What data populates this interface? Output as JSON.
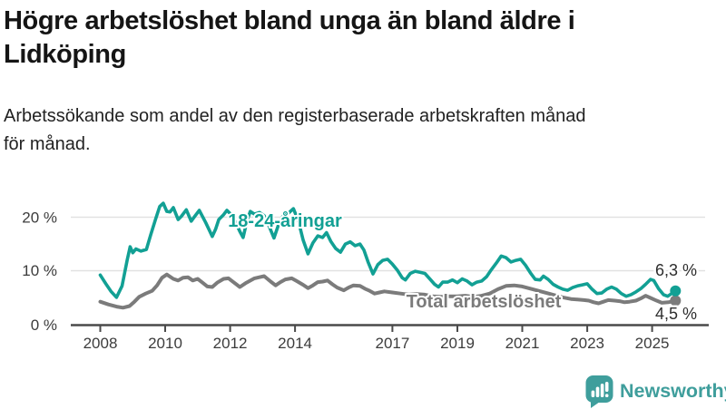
{
  "header": {
    "title": "Högre arbetslöshet bland unga än bland äldre i\nLidköping",
    "subtitle": "Arbetssökande som andel av den registerbaserade arbetskraften månad\nför månad."
  },
  "chart_data": {
    "type": "line",
    "x_unit": "year (decimal years, monthly data)",
    "xlim": [
      2008,
      2025.72
    ],
    "ylim": [
      0,
      24
    ],
    "grid": "horizontal",
    "value_suffix": " %",
    "x_ticks": [
      2008,
      2010,
      2012,
      2014,
      2017,
      2019,
      2021,
      2023,
      2025
    ],
    "y_ticks": [
      {
        "value": 0,
        "label": "0 %"
      },
      {
        "value": 10,
        "label": "10 %"
      },
      {
        "value": 20,
        "label": "20 %"
      }
    ],
    "series": [
      {
        "name": "18-24-åringar",
        "color": "#12a094",
        "end_label": "6,3 %",
        "end_value": 6.3,
        "points": [
          [
            2008.0,
            9.2
          ],
          [
            2008.17,
            7.6
          ],
          [
            2008.33,
            6.2
          ],
          [
            2008.5,
            5.1
          ],
          [
            2008.67,
            7.2
          ],
          [
            2008.83,
            12.0
          ],
          [
            2008.92,
            14.4
          ],
          [
            2009.0,
            13.3
          ],
          [
            2009.1,
            14.0
          ],
          [
            2009.25,
            13.6
          ],
          [
            2009.42,
            13.9
          ],
          [
            2009.55,
            16.5
          ],
          [
            2009.7,
            19.4
          ],
          [
            2009.83,
            21.8
          ],
          [
            2009.94,
            22.4
          ],
          [
            2010.05,
            20.9
          ],
          [
            2010.15,
            20.8
          ],
          [
            2010.25,
            21.6
          ],
          [
            2010.4,
            19.4
          ],
          [
            2010.5,
            20.0
          ],
          [
            2010.65,
            21.2
          ],
          [
            2010.8,
            19.1
          ],
          [
            2010.9,
            19.9
          ],
          [
            2011.05,
            21.1
          ],
          [
            2011.25,
            18.8
          ],
          [
            2011.45,
            16.3
          ],
          [
            2011.55,
            17.6
          ],
          [
            2011.65,
            19.4
          ],
          [
            2011.8,
            20.3
          ],
          [
            2011.9,
            21.1
          ],
          [
            2012.0,
            20.5
          ],
          [
            2012.15,
            19.2
          ],
          [
            2012.3,
            17.2
          ],
          [
            2012.4,
            16.1
          ],
          [
            2012.52,
            19.2
          ],
          [
            2012.62,
            20.9
          ],
          [
            2012.75,
            20.4
          ],
          [
            2012.9,
            20.7
          ],
          [
            2013.05,
            20.1
          ],
          [
            2013.2,
            18.2
          ],
          [
            2013.35,
            16.0
          ],
          [
            2013.5,
            18.6
          ],
          [
            2013.65,
            20.3
          ],
          [
            2013.8,
            20.6
          ],
          [
            2013.95,
            21.4
          ],
          [
            2014.1,
            19.2
          ],
          [
            2014.25,
            15.6
          ],
          [
            2014.4,
            13.1
          ],
          [
            2014.55,
            15.1
          ],
          [
            2014.7,
            16.4
          ],
          [
            2014.85,
            16.1
          ],
          [
            2014.97,
            17.0
          ],
          [
            2015.1,
            15.4
          ],
          [
            2015.25,
            14.1
          ],
          [
            2015.4,
            13.4
          ],
          [
            2015.55,
            14.9
          ],
          [
            2015.7,
            15.3
          ],
          [
            2015.85,
            14.6
          ],
          [
            2016.0,
            14.9
          ],
          [
            2016.12,
            13.8
          ],
          [
            2016.25,
            11.6
          ],
          [
            2016.4,
            9.4
          ],
          [
            2016.55,
            11.1
          ],
          [
            2016.7,
            11.9
          ],
          [
            2016.85,
            12.1
          ],
          [
            2017.0,
            11.2
          ],
          [
            2017.15,
            10.1
          ],
          [
            2017.3,
            8.7
          ],
          [
            2017.4,
            8.3
          ],
          [
            2017.55,
            9.5
          ],
          [
            2017.7,
            9.9
          ],
          [
            2017.85,
            9.7
          ],
          [
            2018.0,
            9.5
          ],
          [
            2018.15,
            8.5
          ],
          [
            2018.3,
            7.5
          ],
          [
            2018.42,
            7.0
          ],
          [
            2018.55,
            7.9
          ],
          [
            2018.7,
            7.9
          ],
          [
            2018.85,
            8.3
          ],
          [
            2019.0,
            7.8
          ],
          [
            2019.15,
            8.5
          ],
          [
            2019.3,
            8.1
          ],
          [
            2019.45,
            7.4
          ],
          [
            2019.6,
            7.9
          ],
          [
            2019.75,
            8.1
          ],
          [
            2019.9,
            8.9
          ],
          [
            2020.05,
            10.2
          ],
          [
            2020.2,
            11.4
          ],
          [
            2020.35,
            12.7
          ],
          [
            2020.5,
            12.4
          ],
          [
            2020.65,
            11.6
          ],
          [
            2020.8,
            11.9
          ],
          [
            2020.95,
            12.1
          ],
          [
            2021.1,
            11.0
          ],
          [
            2021.25,
            9.6
          ],
          [
            2021.4,
            8.4
          ],
          [
            2021.55,
            8.3
          ],
          [
            2021.65,
            9.0
          ],
          [
            2021.8,
            8.4
          ],
          [
            2021.95,
            7.5
          ],
          [
            2022.1,
            7.0
          ],
          [
            2022.25,
            6.6
          ],
          [
            2022.4,
            6.4
          ],
          [
            2022.55,
            6.9
          ],
          [
            2022.7,
            7.2
          ],
          [
            2022.85,
            7.4
          ],
          [
            2023.0,
            7.6
          ],
          [
            2023.15,
            6.6
          ],
          [
            2023.3,
            5.8
          ],
          [
            2023.45,
            5.9
          ],
          [
            2023.6,
            6.6
          ],
          [
            2023.75,
            7.0
          ],
          [
            2023.9,
            6.6
          ],
          [
            2024.05,
            5.8
          ],
          [
            2024.2,
            5.3
          ],
          [
            2024.35,
            5.6
          ],
          [
            2024.5,
            6.1
          ],
          [
            2024.65,
            6.7
          ],
          [
            2024.8,
            7.5
          ],
          [
            2024.95,
            8.4
          ],
          [
            2025.05,
            8.2
          ],
          [
            2025.2,
            6.7
          ],
          [
            2025.35,
            5.6
          ],
          [
            2025.48,
            5.3
          ],
          [
            2025.6,
            5.8
          ],
          [
            2025.72,
            6.3
          ]
        ]
      },
      {
        "name": "Total arbetslöshet",
        "color": "#7b7b7b",
        "end_label": "4,5 %",
        "end_value": 4.5,
        "points": [
          [
            2008.0,
            4.3
          ],
          [
            2008.25,
            3.8
          ],
          [
            2008.5,
            3.4
          ],
          [
            2008.7,
            3.2
          ],
          [
            2008.9,
            3.5
          ],
          [
            2009.05,
            4.3
          ],
          [
            2009.2,
            5.2
          ],
          [
            2009.4,
            5.8
          ],
          [
            2009.6,
            6.3
          ],
          [
            2009.75,
            7.3
          ],
          [
            2009.9,
            8.7
          ],
          [
            2010.05,
            9.3
          ],
          [
            2010.25,
            8.5
          ],
          [
            2010.4,
            8.2
          ],
          [
            2010.55,
            8.7
          ],
          [
            2010.7,
            8.8
          ],
          [
            2010.85,
            8.2
          ],
          [
            2011.0,
            8.5
          ],
          [
            2011.15,
            7.8
          ],
          [
            2011.3,
            7.1
          ],
          [
            2011.45,
            7.0
          ],
          [
            2011.6,
            7.8
          ],
          [
            2011.8,
            8.5
          ],
          [
            2011.95,
            8.6
          ],
          [
            2012.1,
            7.9
          ],
          [
            2012.3,
            7.0
          ],
          [
            2012.5,
            7.8
          ],
          [
            2012.75,
            8.6
          ],
          [
            2012.9,
            8.8
          ],
          [
            2013.05,
            9.0
          ],
          [
            2013.25,
            8.0
          ],
          [
            2013.4,
            7.3
          ],
          [
            2013.55,
            7.9
          ],
          [
            2013.7,
            8.4
          ],
          [
            2013.9,
            8.6
          ],
          [
            2014.05,
            8.1
          ],
          [
            2014.25,
            7.4
          ],
          [
            2014.4,
            6.8
          ],
          [
            2014.55,
            7.3
          ],
          [
            2014.7,
            7.9
          ],
          [
            2014.85,
            8.0
          ],
          [
            2015.0,
            8.2
          ],
          [
            2015.15,
            7.5
          ],
          [
            2015.3,
            6.9
          ],
          [
            2015.5,
            6.4
          ],
          [
            2015.65,
            6.9
          ],
          [
            2015.8,
            7.3
          ],
          [
            2016.0,
            7.2
          ],
          [
            2016.15,
            6.7
          ],
          [
            2016.3,
            6.3
          ],
          [
            2016.45,
            5.8
          ],
          [
            2016.6,
            6.0
          ],
          [
            2016.75,
            6.2
          ],
          [
            2017.0,
            6.0
          ],
          [
            2017.25,
            5.8
          ],
          [
            2017.5,
            5.6
          ],
          [
            2017.75,
            5.7
          ],
          [
            2018.0,
            5.6
          ],
          [
            2018.25,
            5.3
          ],
          [
            2018.5,
            5.2
          ],
          [
            2018.75,
            5.3
          ],
          [
            2019.0,
            5.3
          ],
          [
            2019.25,
            5.4
          ],
          [
            2019.5,
            5.2
          ],
          [
            2019.75,
            5.4
          ],
          [
            2020.0,
            5.8
          ],
          [
            2020.25,
            6.6
          ],
          [
            2020.5,
            7.2
          ],
          [
            2020.75,
            7.3
          ],
          [
            2021.0,
            7.1
          ],
          [
            2021.25,
            6.7
          ],
          [
            2021.5,
            6.3
          ],
          [
            2021.75,
            5.9
          ],
          [
            2022.0,
            5.5
          ],
          [
            2022.25,
            5.1
          ],
          [
            2022.5,
            4.8
          ],
          [
            2022.7,
            4.7
          ],
          [
            2022.9,
            4.6
          ],
          [
            2023.05,
            4.5
          ],
          [
            2023.2,
            4.2
          ],
          [
            2023.35,
            4.0
          ],
          [
            2023.5,
            4.3
          ],
          [
            2023.65,
            4.6
          ],
          [
            2023.85,
            4.5
          ],
          [
            2024.0,
            4.4
          ],
          [
            2024.15,
            4.2
          ],
          [
            2024.3,
            4.3
          ],
          [
            2024.5,
            4.5
          ],
          [
            2024.65,
            4.9
          ],
          [
            2024.8,
            5.4
          ],
          [
            2024.95,
            5.0
          ],
          [
            2025.1,
            4.6
          ],
          [
            2025.3,
            4.1
          ],
          [
            2025.5,
            4.2
          ],
          [
            2025.72,
            4.5
          ]
        ]
      }
    ]
  },
  "footer": {
    "brand": "Newsworthy"
  },
  "colors": {
    "line_youth": "#12a094",
    "line_total": "#7b7b7b",
    "brand_teal": "#3f9e9c",
    "grid": "#e1e1e1",
    "axis": "#4a4a4a"
  }
}
